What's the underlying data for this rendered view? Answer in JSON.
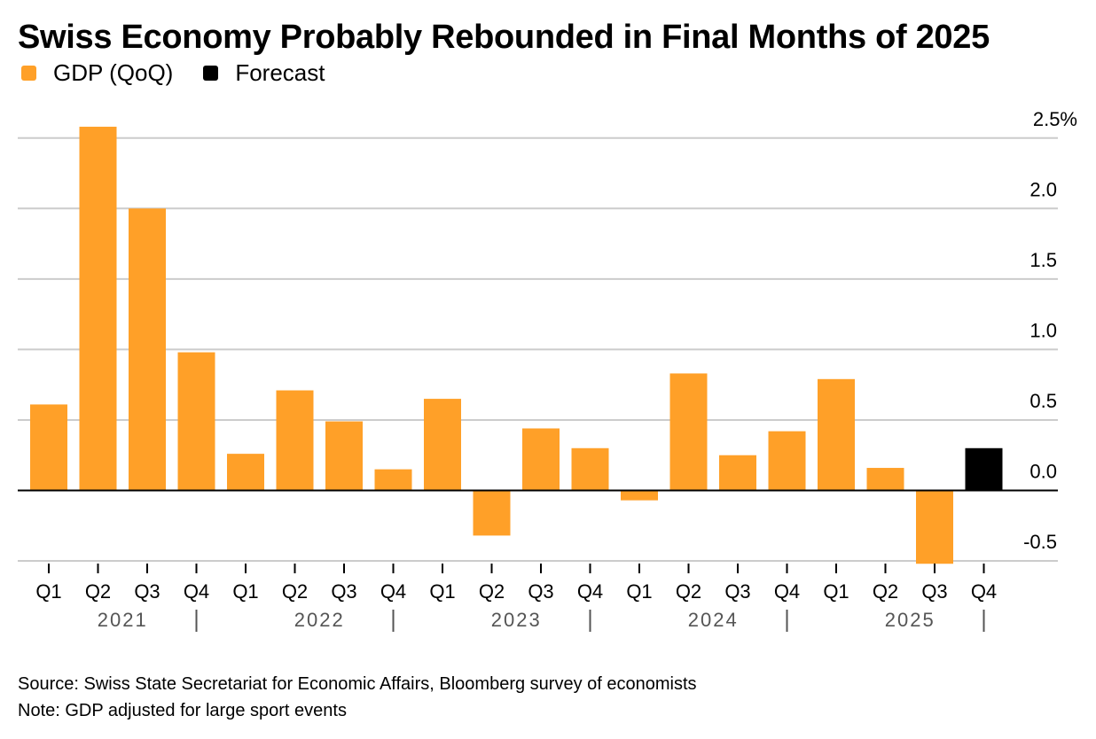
{
  "chart_data": {
    "type": "bar",
    "title": "Swiss Economy Probably Rebounded in Final Months of 2025",
    "xlabel": "",
    "ylabel": "",
    "ylim": [
      -0.5,
      2.5
    ],
    "yticks": [
      {
        "value": 2.5,
        "label": "2.5%"
      },
      {
        "value": 2.0,
        "label": "2.0"
      },
      {
        "value": 1.5,
        "label": "1.5"
      },
      {
        "value": 1.0,
        "label": "1.0"
      },
      {
        "value": 0.5,
        "label": "0.5"
      },
      {
        "value": 0.0,
        "label": "0.0"
      },
      {
        "value": -0.5,
        "label": "-0.5"
      }
    ],
    "grid": true,
    "y_axis_side": "right",
    "legend_position": "top-left",
    "legend": [
      {
        "name": "GDP (QoQ)",
        "color": "#FFA028"
      },
      {
        "name": "Forecast",
        "color": "#000000"
      }
    ],
    "categories": [
      "Q1",
      "Q2",
      "Q3",
      "Q4",
      "Q1",
      "Q2",
      "Q3",
      "Q4",
      "Q1",
      "Q2",
      "Q3",
      "Q4",
      "Q1",
      "Q2",
      "Q3",
      "Q4",
      "Q1",
      "Q2",
      "Q3",
      "Q4"
    ],
    "years": [
      {
        "label": "2021",
        "quarters": 4
      },
      {
        "label": "2022",
        "quarters": 4
      },
      {
        "label": "2023",
        "quarters": 4
      },
      {
        "label": "2024",
        "quarters": 4
      },
      {
        "label": "2025",
        "quarters": 4
      }
    ],
    "year_separator": "|",
    "series": [
      {
        "name": "GDP (QoQ)",
        "color": "#FFA028",
        "values": [
          0.61,
          2.58,
          2.0,
          0.98,
          0.26,
          0.71,
          0.49,
          0.15,
          0.65,
          -0.32,
          0.44,
          0.3,
          -0.07,
          0.83,
          0.25,
          0.42,
          0.79,
          0.16,
          -0.52,
          null
        ]
      },
      {
        "name": "Forecast",
        "color": "#000000",
        "values": [
          null,
          null,
          null,
          null,
          null,
          null,
          null,
          null,
          null,
          null,
          null,
          null,
          null,
          null,
          null,
          null,
          null,
          null,
          null,
          0.3
        ]
      }
    ]
  },
  "footer": {
    "source": "Source: Swiss State Secretariat for Economic Affairs, Bloomberg survey of economists",
    "note": "Note: GDP adjusted for large sport events"
  }
}
